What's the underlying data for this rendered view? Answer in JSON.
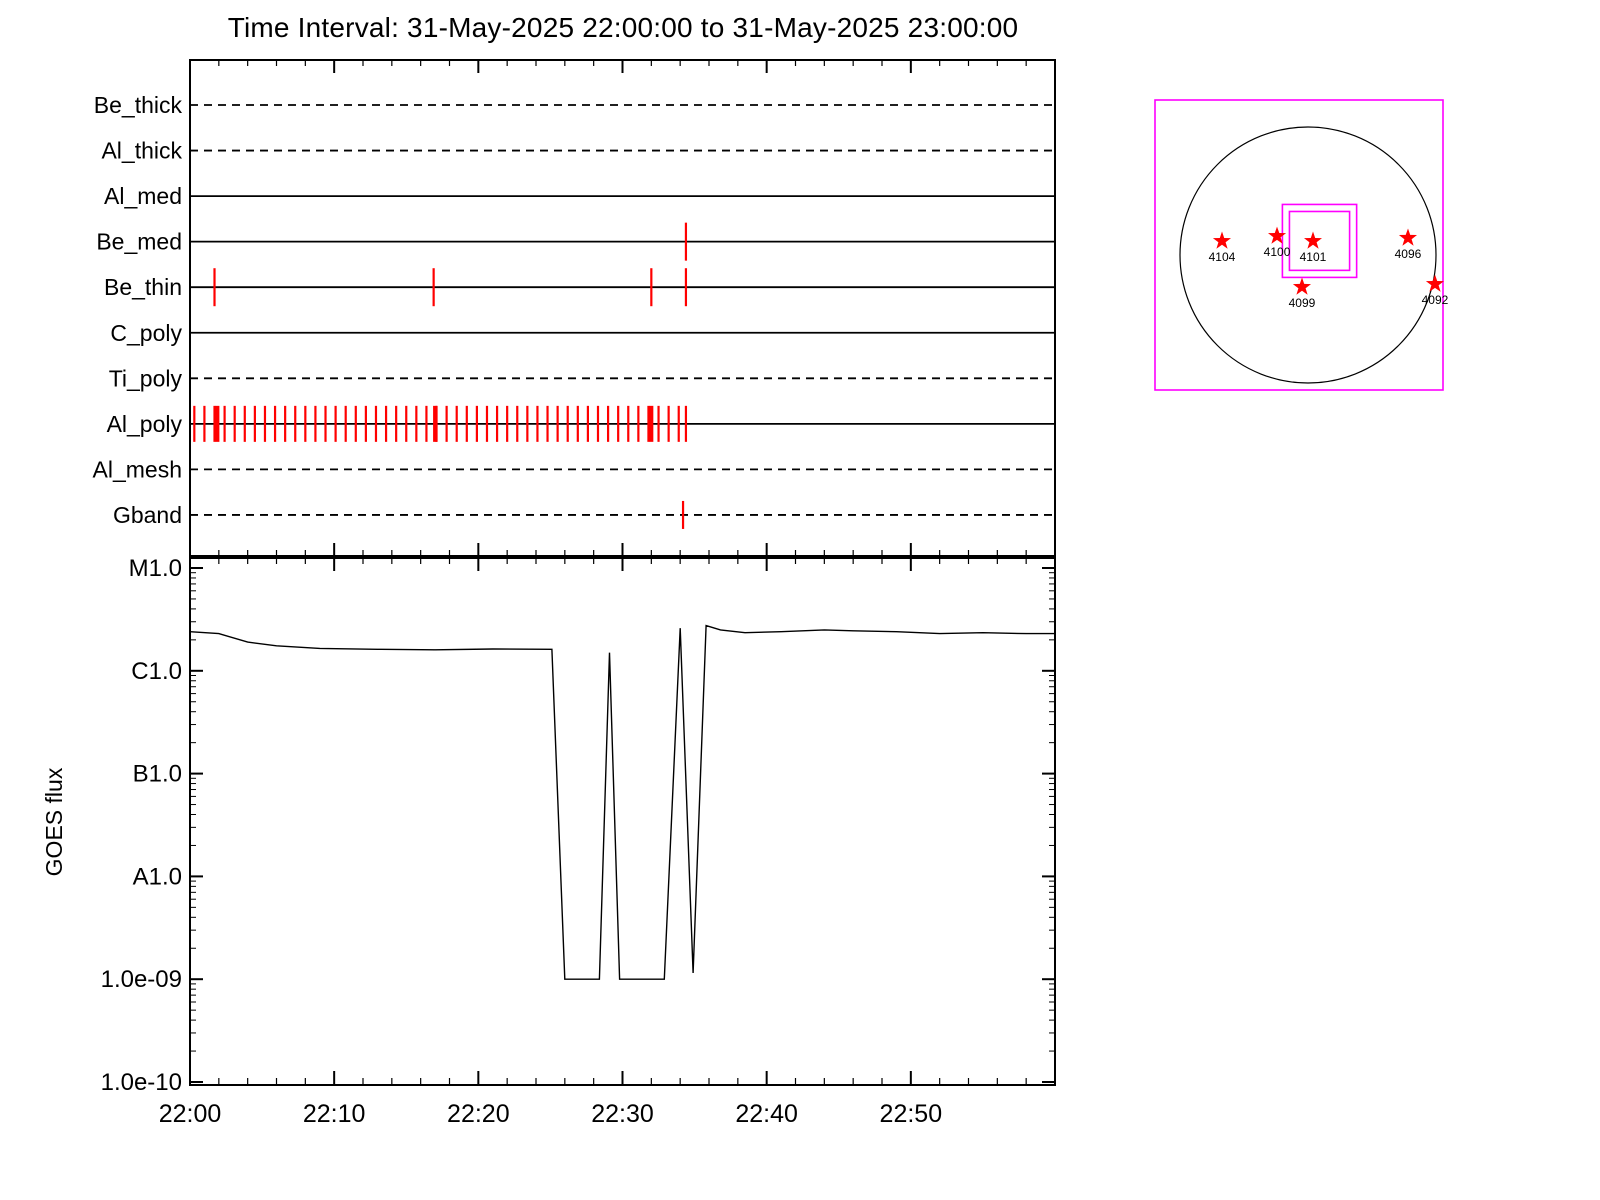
{
  "title": "Time Interval: 31-May-2025 22:00:00 to 31-May-2025 23:00:00",
  "colors": {
    "axis": "#000000",
    "event_tick": "#ff0000",
    "fov_box": "#ff00ff",
    "active_region_star": "#ff0000",
    "goes_line": "#000000",
    "background": "#ffffff"
  },
  "chart_data": [
    {
      "id": "xrt-filter-timeline",
      "type": "timeline",
      "title": "Time Interval: 31-May-2025 22:00:00 to 31-May-2025 23:00:00",
      "x_axis": {
        "range_minutes": [
          0,
          60
        ],
        "major_step_minutes": 10,
        "minor_step_minutes": 2,
        "tick_labels": [
          "22:00",
          "22:10",
          "22:20",
          "22:30",
          "22:40",
          "22:50"
        ]
      },
      "rows": [
        {
          "label": "Be_thick",
          "line_style": "dashed",
          "events_min": []
        },
        {
          "label": "Al_thick",
          "line_style": "dashed",
          "events_min": []
        },
        {
          "label": "Al_med",
          "line_style": "solid",
          "events_min": []
        },
        {
          "label": "Be_med",
          "line_style": "solid",
          "events_min": [
            34.4
          ]
        },
        {
          "label": "Be_thin",
          "line_style": "solid",
          "events_min": [
            1.7,
            16.9,
            32.0,
            34.4
          ]
        },
        {
          "label": "C_poly",
          "line_style": "solid",
          "events_min": []
        },
        {
          "label": "Ti_poly",
          "line_style": "dashed",
          "events_min": []
        },
        {
          "label": "Al_poly",
          "line_style": "solid",
          "events_min": [
            0.3,
            1.0,
            1.7,
            2.4,
            3.1,
            3.8,
            4.5,
            5.2,
            5.9,
            6.6,
            7.3,
            8.0,
            8.7,
            9.4,
            10.1,
            10.8,
            11.5,
            12.2,
            12.9,
            13.6,
            14.3,
            15.0,
            15.7,
            16.4,
            17.1,
            17.8,
            18.5,
            19.2,
            19.9,
            20.6,
            21.3,
            22.0,
            22.7,
            23.4,
            24.1,
            24.8,
            25.5,
            26.2,
            26.9,
            27.6,
            28.3,
            29.0,
            29.7,
            30.4,
            31.1,
            31.8,
            32.5,
            33.2,
            33.9,
            34.4
          ],
          "strong_events_min": [
            1.9,
            17.0,
            32.0
          ]
        },
        {
          "label": "Al_mesh",
          "line_style": "dashed",
          "events_min": []
        },
        {
          "label": "Gband",
          "line_style": "dashed",
          "events_min": [
            34.2
          ]
        }
      ]
    },
    {
      "id": "goes-flux",
      "type": "line",
      "ylabel": "GOES flux",
      "y_scale": "log",
      "ylim": [
        1e-10,
        1.25e-05
      ],
      "y_ticks": [
        {
          "label": "M1.0",
          "value": 1e-05
        },
        {
          "label": "C1.0",
          "value": 1e-06
        },
        {
          "label": "B1.0",
          "value": 1e-07
        },
        {
          "label": "A1.0",
          "value": 1e-08
        },
        {
          "label": "1.0e-09",
          "value": 1e-09
        },
        {
          "label": "1.0e-10",
          "value": 1e-10
        }
      ],
      "x_axis": {
        "range_minutes": [
          0,
          60
        ],
        "major_step_minutes": 10,
        "minor_step_minutes": 2,
        "tick_labels": [
          "22:00",
          "22:10",
          "22:20",
          "22:30",
          "22:40",
          "22:50"
        ]
      },
      "series": [
        {
          "name": "GOES flux",
          "points": [
            [
              0,
              2.4e-06
            ],
            [
              2,
              2.3e-06
            ],
            [
              4,
              1.9e-06
            ],
            [
              6,
              1.75e-06
            ],
            [
              9,
              1.65e-06
            ],
            [
              13,
              1.62e-06
            ],
            [
              17,
              1.6e-06
            ],
            [
              21,
              1.63e-06
            ],
            [
              25.1,
              1.62e-06
            ],
            [
              26.0,
              1e-09
            ],
            [
              28.4,
              1e-09
            ],
            [
              29.1,
              1.5e-06
            ],
            [
              29.8,
              1e-09
            ],
            [
              32.9,
              1e-09
            ],
            [
              34.0,
              2.6e-06
            ],
            [
              34.9,
              1.15e-09
            ],
            [
              35.8,
              2.75e-06
            ],
            [
              36.8,
              2.5e-06
            ],
            [
              38.5,
              2.35e-06
            ],
            [
              41,
              2.4e-06
            ],
            [
              44,
              2.5e-06
            ],
            [
              46,
              2.45e-06
            ],
            [
              49,
              2.4e-06
            ],
            [
              52,
              2.3e-06
            ],
            [
              55,
              2.35e-06
            ],
            [
              58,
              2.3e-06
            ],
            [
              60,
              2.3e-06
            ]
          ]
        }
      ]
    },
    {
      "id": "solar-disk-map",
      "type": "scatter",
      "description": "Solar disk with XRT field-of-view boxes and numbered active regions",
      "fov_boxes": [
        {
          "cx": 0.09,
          "cy": 0.11,
          "half_w": 0.29,
          "half_h": 0.285
        },
        {
          "cx": 0.09,
          "cy": 0.11,
          "half_w": 0.235,
          "half_h": 0.23
        }
      ],
      "active_regions": [
        {
          "label": "4104",
          "x": -0.672,
          "y": 0.109
        },
        {
          "label": "4100",
          "x": -0.242,
          "y": 0.148
        },
        {
          "label": "4101",
          "x": 0.039,
          "y": 0.109
        },
        {
          "label": "4096",
          "x": 0.781,
          "y": 0.133
        },
        {
          "label": "4099",
          "x": -0.047,
          "y": -0.25
        },
        {
          "label": "4092",
          "x": 0.992,
          "y": -0.227
        }
      ]
    }
  ]
}
